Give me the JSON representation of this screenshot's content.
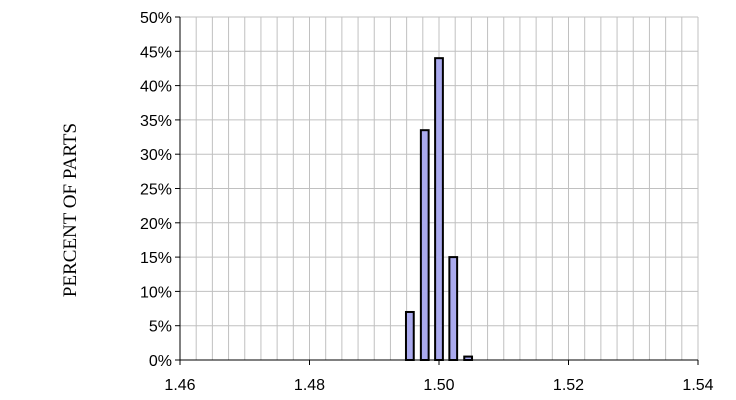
{
  "chart_data": {
    "type": "bar",
    "title": "",
    "xlabel": "",
    "ylabel": "PERCENT OF PARTS",
    "xlim": [
      1.46,
      1.54
    ],
    "ylim": [
      0,
      0.5
    ],
    "x_ticks": [
      "1.46",
      "1.48",
      "1.50",
      "1.52",
      "1.54"
    ],
    "y_ticks": [
      "0%",
      "5%",
      "10%",
      "15%",
      "20%",
      "25%",
      "30%",
      "35%",
      "40%",
      "45%",
      "50%"
    ],
    "x": [
      1.4955,
      1.4978,
      1.5,
      1.5022,
      1.5045
    ],
    "values": [
      0.07,
      0.335,
      0.44,
      0.15,
      0.005
    ],
    "grid": true,
    "legend": "none",
    "colors": {
      "bar_fill": "#aaaaee",
      "bar_stroke": "#000000",
      "grid": "#c0c0c0",
      "axis": "#000000"
    }
  }
}
